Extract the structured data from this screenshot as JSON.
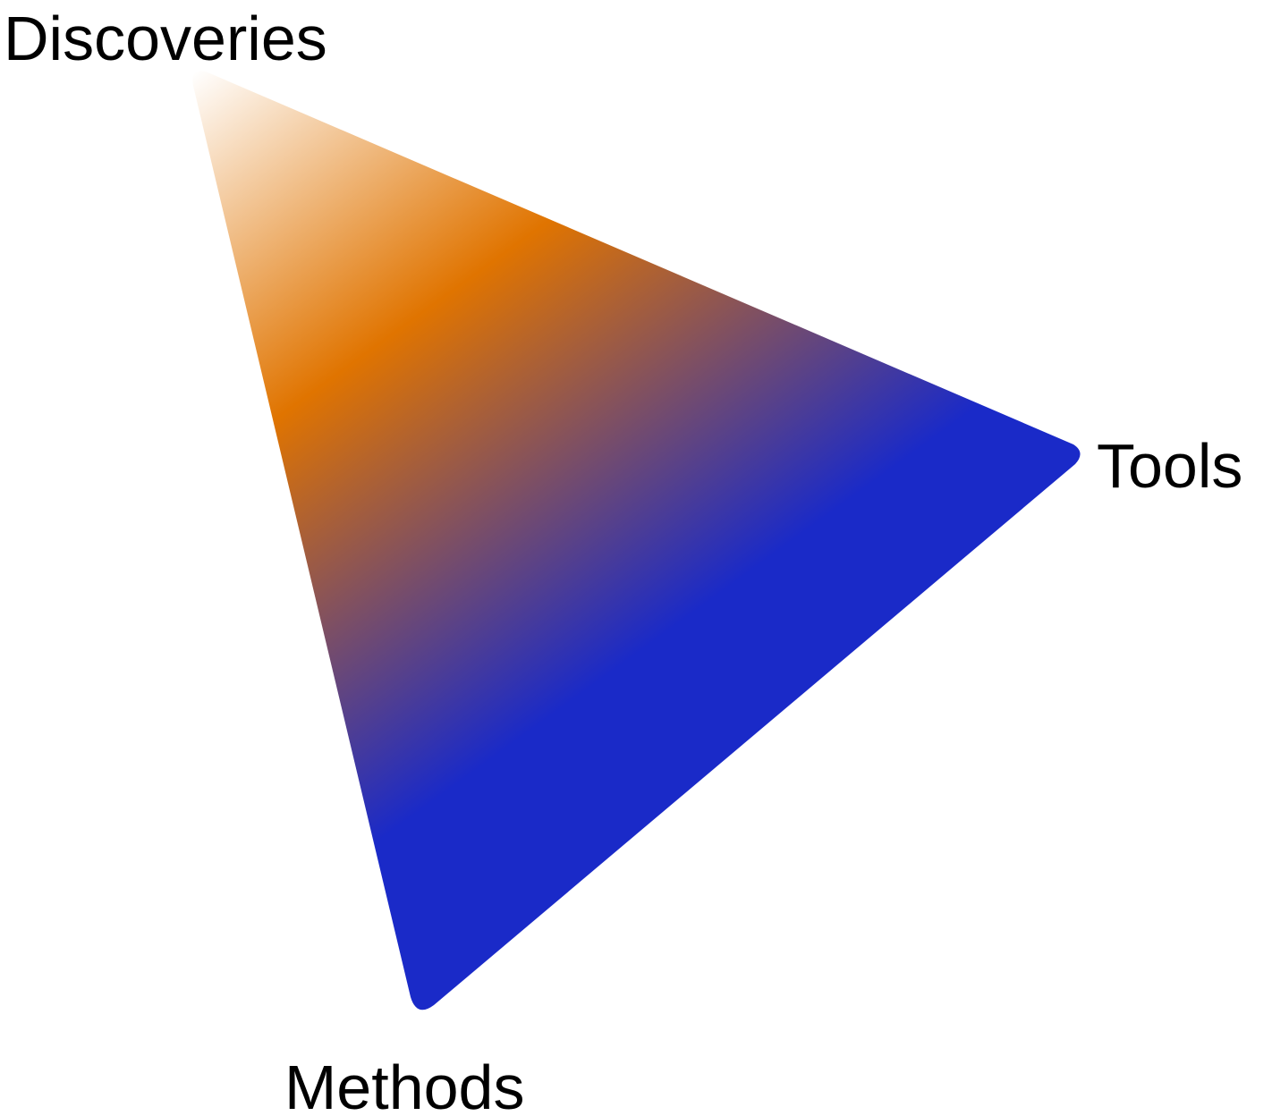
{
  "diagram": {
    "labels": {
      "discoveries": "Discoveries",
      "tools": "Tools",
      "methods": "Methods"
    },
    "gradient": {
      "start_color": "#ffffff",
      "mid_color": "#e07400",
      "end_color": "#1a2ac8"
    }
  }
}
